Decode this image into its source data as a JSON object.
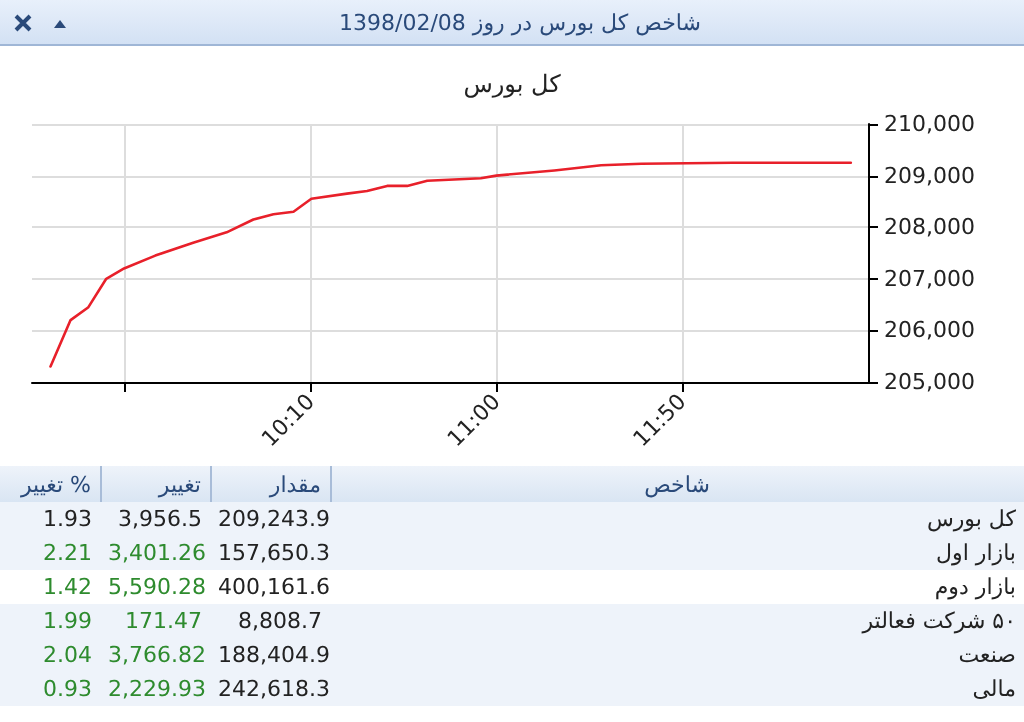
{
  "chart_data": {
    "type": "line",
    "title": "شاخص کل بورس در روز 1398/02/08",
    "subtitle": "کل بورس",
    "x": [
      9.0,
      9.09,
      9.17,
      9.25,
      9.33,
      9.47,
      9.64,
      9.79,
      9.91,
      10.0,
      10.09,
      10.17,
      10.33,
      10.42,
      10.51,
      10.6,
      10.69,
      10.93,
      11.0,
      11.26,
      11.47,
      11.65,
      12.06,
      12.59
    ],
    "series": [
      {
        "color": "#e8202a",
        "values": [
          205300,
          206200,
          206450,
          207000,
          207200,
          207450,
          207700,
          207900,
          208150,
          208250,
          208300,
          208550,
          208650,
          208700,
          208800,
          208800,
          208900,
          208950,
          209000,
          209100,
          209200,
          209230,
          209250,
          209250
        ]
      }
    ],
    "xlim": [
      8.917,
      12.667
    ],
    "xticks": [
      {
        "value": 9.3333,
        "label": null
      },
      {
        "value": 10.1667,
        "label": "10:10"
      },
      {
        "value": 11,
        "label": "11:00"
      },
      {
        "value": 11.8333,
        "label": "11:50"
      }
    ],
    "ylim": [
      205000,
      210000
    ],
    "yticks": [
      {
        "value": 205000,
        "label": "205,000"
      },
      {
        "value": 206000,
        "label": "206,000"
      },
      {
        "value": 207000,
        "label": "207,000"
      },
      {
        "value": 208000,
        "label": "208,000"
      },
      {
        "value": 209000,
        "label": "209,000"
      },
      {
        "value": 210000,
        "label": "210,000"
      }
    ],
    "grid": true,
    "marker": "none",
    "line_style": "solid",
    "annotations": [
      "% تغییر",
      "تغییر",
      "مقدار",
      "شاخص",
      "1.93",
      "3,956.5",
      "209,243.9",
      "کل بورس",
      "2.21",
      "3,401.26",
      "157,650.3",
      "بازار اول",
      "1.42",
      "5,590.28",
      "400,161.6",
      "بازار دوم",
      "1.99",
      "171.47",
      "8,808.7",
      "۵۰ شرکت فعالتر",
      "2.04",
      "3,766.82",
      "188,404.9",
      "صنعت",
      "0.93",
      "2,229.93",
      "242,618.3",
      "مالی"
    ]
  }
}
